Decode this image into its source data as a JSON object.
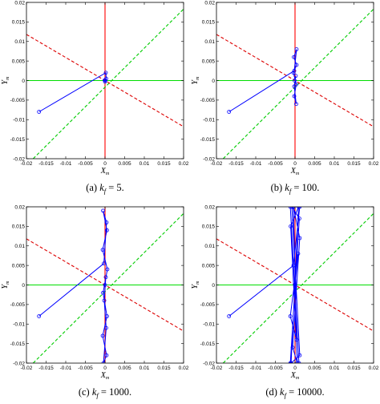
{
  "figure": {
    "captions": [
      {
        "label": "(a) ",
        "var": "k",
        "sub": "f",
        "rest": " = 5."
      },
      {
        "label": "(b) ",
        "var": "k",
        "sub": "f",
        "rest": " = 100."
      },
      {
        "label": "(c) ",
        "var": "k",
        "sub": "f",
        "rest": " = 1000."
      },
      {
        "label": "(d) ",
        "var": "k",
        "sub": "f",
        "rest": " = 10000."
      }
    ]
  },
  "chart_data": [
    {
      "type": "line",
      "panel": "a",
      "xlabel": {
        "main": "X",
        "sub": "m"
      },
      "ylabel": {
        "main": "Y",
        "sub": "m"
      },
      "xlim": [
        -0.02,
        0.02
      ],
      "ylim": [
        -0.02,
        0.02
      ],
      "xticks": [
        "-0.02",
        "-0.015",
        "-0.01",
        "-0.005",
        "0",
        "0.005",
        "0.01",
        "0.015",
        "0.02"
      ],
      "yticks": [
        "0.02",
        "0.015",
        "0.01",
        "0.005",
        "0",
        "-0.005",
        "-0.01",
        "-0.015",
        "-0.02"
      ],
      "reference_lines": [
        {
          "color": "#ff0000",
          "style": "solid",
          "points": [
            [
              0,
              -0.02
            ],
            [
              0,
              0.02
            ]
          ]
        },
        {
          "color": "#00dd00",
          "style": "solid",
          "points": [
            [
              -0.02,
              0
            ],
            [
              0.02,
              0
            ]
          ]
        },
        {
          "color": "#00cc00",
          "style": "dashed",
          "points": [
            [
              -0.0183,
              -0.02
            ],
            [
              0.02,
              0.0183
            ]
          ]
        },
        {
          "color": "#dd0000",
          "style": "dashed",
          "points": [
            [
              -0.02,
              0.0118
            ],
            [
              0.02,
              -0.0118
            ]
          ]
        }
      ],
      "trajectory": {
        "color": "#0000ff",
        "points": [
          [
            -0.0168,
            -0.008
          ],
          [
            0.0002,
            0.002
          ],
          [
            0.0003,
            0.0005
          ],
          [
            0.0,
            -0.0003
          ],
          [
            -0.0001,
            0.0001
          ],
          [
            0.0001,
            0.0
          ]
        ],
        "markers": [
          [
            -0.0168,
            -0.008
          ],
          [
            0.0002,
            0.002
          ],
          [
            0.0003,
            0.0005
          ],
          [
            0.0,
            -0.0003
          ],
          [
            -0.0001,
            0.0001
          ],
          [
            0.0001,
            0.0
          ]
        ]
      }
    },
    {
      "type": "line",
      "panel": "b",
      "xlabel": {
        "main": "X",
        "sub": "m"
      },
      "ylabel": {
        "main": "Y",
        "sub": "m"
      },
      "xlim": [
        -0.02,
        0.02
      ],
      "ylim": [
        -0.02,
        0.02
      ],
      "xticks": [
        "-0.02",
        "-0.015",
        "-0.01",
        "-0.005",
        "0",
        "0.005",
        "0.01",
        "0.015",
        "0.02"
      ],
      "yticks": [
        "0.02",
        "0.015",
        "0.01",
        "0.005",
        "0",
        "-0.005",
        "-0.01",
        "-0.015",
        "-0.02"
      ],
      "reference_lines": [
        {
          "color": "#ff0000",
          "style": "solid",
          "points": [
            [
              0,
              -0.02
            ],
            [
              0,
              0.02
            ]
          ]
        },
        {
          "color": "#00dd00",
          "style": "solid",
          "points": [
            [
              -0.02,
              0
            ],
            [
              0.02,
              0
            ]
          ]
        },
        {
          "color": "#00cc00",
          "style": "dashed",
          "points": [
            [
              -0.0183,
              -0.02
            ],
            [
              0.02,
              0.0183
            ]
          ]
        },
        {
          "color": "#dd0000",
          "style": "dashed",
          "points": [
            [
              -0.02,
              0.0118
            ],
            [
              0.02,
              -0.0118
            ]
          ]
        }
      ],
      "trajectory": {
        "color": "#0000ff",
        "points": [
          [
            -0.0168,
            -0.008
          ],
          [
            -0.0002,
            0.0025
          ],
          [
            0.0004,
            0.008
          ],
          [
            -0.0003,
            0.006
          ],
          [
            0.0004,
            0.004
          ],
          [
            -0.0004,
            0.002
          ],
          [
            0.0003,
            -0.001
          ],
          [
            -0.0002,
            -0.004
          ],
          [
            0.0003,
            -0.006
          ],
          [
            -0.0002,
            -0.0015
          ],
          [
            0.0002,
            0.0012
          ],
          [
            -0.0001,
            0.0
          ]
        ],
        "markers": [
          [
            -0.0168,
            -0.008
          ],
          [
            -0.0002,
            0.0025
          ],
          [
            0.0004,
            0.008
          ],
          [
            -0.0003,
            0.006
          ],
          [
            0.0004,
            0.004
          ],
          [
            -0.0004,
            0.002
          ],
          [
            0.0003,
            -0.001
          ],
          [
            -0.0002,
            -0.004
          ],
          [
            0.0003,
            -0.006
          ],
          [
            -0.0002,
            -0.0015
          ],
          [
            0.0002,
            0.0012
          ],
          [
            -0.0001,
            0.0
          ]
        ]
      }
    },
    {
      "type": "line",
      "panel": "c",
      "xlabel": {
        "main": "X",
        "sub": "m"
      },
      "ylabel": {
        "main": "Y",
        "sub": "m"
      },
      "xlim": [
        -0.02,
        0.02
      ],
      "ylim": [
        -0.02,
        0.02
      ],
      "xticks": [
        "-0.02",
        "-0.015",
        "-0.01",
        "-0.005",
        "0",
        "0.005",
        "0.01",
        "0.015",
        "0.02"
      ],
      "yticks": [
        "0.02",
        "0.015",
        "0.01",
        "0.005",
        "0",
        "-0.005",
        "-0.01",
        "-0.015",
        "-0.02"
      ],
      "reference_lines": [
        {
          "color": "#ff0000",
          "style": "solid",
          "points": [
            [
              0,
              -0.02
            ],
            [
              0,
              0.02
            ]
          ]
        },
        {
          "color": "#00dd00",
          "style": "solid",
          "points": [
            [
              -0.02,
              0
            ],
            [
              0.02,
              0
            ]
          ]
        },
        {
          "color": "#00cc00",
          "style": "dashed",
          "points": [
            [
              -0.0183,
              -0.02
            ],
            [
              0.02,
              0.0183
            ]
          ]
        },
        {
          "color": "#dd0000",
          "style": "dashed",
          "points": [
            [
              -0.02,
              0.0118
            ],
            [
              0.02,
              -0.0118
            ]
          ]
        }
      ],
      "trajectory": {
        "color": "#0000ff",
        "points": [
          [
            -0.0168,
            -0.008
          ],
          [
            -0.0003,
            0.0055
          ],
          [
            0.0004,
            0.016
          ],
          [
            -0.0005,
            0.019
          ],
          [
            0.0005,
            0.014
          ],
          [
            -0.0006,
            0.009
          ],
          [
            0.0006,
            0.004
          ],
          [
            -0.0005,
            -0.002
          ],
          [
            0.0005,
            -0.008
          ],
          [
            -0.0006,
            -0.013
          ],
          [
            0.0004,
            -0.018
          ],
          [
            -0.0004,
            -0.02
          ],
          [
            0.0003,
            -0.011
          ],
          [
            -0.0002,
            -0.004
          ],
          [
            0.0002,
            0.002
          ],
          [
            0.0,
            0.0
          ]
        ],
        "markers": [
          [
            -0.0168,
            -0.008
          ],
          [
            -0.0003,
            0.0055
          ],
          [
            0.0004,
            0.016
          ],
          [
            -0.0005,
            0.019
          ],
          [
            0.0005,
            0.014
          ],
          [
            -0.0006,
            0.009
          ],
          [
            0.0006,
            0.004
          ],
          [
            -0.0005,
            -0.002
          ],
          [
            0.0005,
            -0.008
          ],
          [
            -0.0006,
            -0.013
          ],
          [
            0.0004,
            -0.018
          ],
          [
            -0.0004,
            -0.02
          ],
          [
            0.0003,
            -0.011
          ],
          [
            -0.0002,
            -0.004
          ],
          [
            0.0002,
            0.002
          ],
          [
            0.0,
            0.0
          ]
        ]
      }
    },
    {
      "type": "line",
      "panel": "d",
      "xlabel": {
        "main": "X",
        "sub": "m"
      },
      "ylabel": {
        "main": "Y",
        "sub": "m"
      },
      "xlim": [
        -0.02,
        0.02
      ],
      "ylim": [
        -0.02,
        0.02
      ],
      "xticks": [
        "-0.02",
        "-0.015",
        "-0.01",
        "-0.005",
        "0",
        "0.005",
        "0.01",
        "0.015",
        "0.02"
      ],
      "yticks": [
        "0.02",
        "0.015",
        "0.01",
        "0.005",
        "0",
        "-0.005",
        "-0.01",
        "-0.015",
        "-0.02"
      ],
      "reference_lines": [
        {
          "color": "#ff0000",
          "style": "solid",
          "points": [
            [
              0,
              -0.02
            ],
            [
              0,
              0.02
            ]
          ]
        },
        {
          "color": "#00dd00",
          "style": "solid",
          "points": [
            [
              -0.02,
              0
            ],
            [
              0.02,
              0
            ]
          ]
        },
        {
          "color": "#00cc00",
          "style": "dashed",
          "points": [
            [
              -0.0183,
              -0.02
            ],
            [
              0.02,
              0.0183
            ]
          ]
        },
        {
          "color": "#dd0000",
          "style": "dashed",
          "points": [
            [
              -0.02,
              0.0118
            ],
            [
              0.02,
              -0.0118
            ]
          ]
        }
      ],
      "trajectory": {
        "color": "#0000ff",
        "points": [
          [
            -0.0168,
            -0.008
          ],
          [
            -0.0004,
            0.005
          ],
          [
            0.0012,
            0.02
          ],
          [
            -0.0012,
            0.02
          ],
          [
            0.001,
            -0.02
          ],
          [
            -0.0012,
            -0.02
          ],
          [
            0.0011,
            0.017
          ],
          [
            -0.0008,
            0.02
          ],
          [
            0.0012,
            -0.018
          ],
          [
            -0.001,
            -0.02
          ],
          [
            0.0009,
            0.02
          ],
          [
            -0.0011,
            0.015
          ],
          [
            0.0006,
            -0.02
          ],
          [
            -0.0006,
            -0.016
          ],
          [
            0.0012,
            0.012
          ],
          [
            -0.0004,
            0.02
          ],
          [
            0.0004,
            -0.014
          ],
          [
            -0.0012,
            -0.008
          ],
          [
            0.0008,
            0.008
          ],
          [
            0.0,
            0.0
          ]
        ],
        "markers": [
          [
            -0.0168,
            -0.008
          ],
          [
            -0.0004,
            0.005
          ],
          [
            0.0012,
            0.02
          ],
          [
            -0.0012,
            0.02
          ],
          [
            0.001,
            -0.02
          ],
          [
            -0.0012,
            -0.02
          ],
          [
            0.0011,
            0.017
          ],
          [
            -0.0008,
            0.02
          ],
          [
            0.0012,
            -0.018
          ],
          [
            -0.001,
            -0.02
          ],
          [
            0.0009,
            0.02
          ],
          [
            -0.0011,
            0.015
          ],
          [
            0.0006,
            -0.02
          ],
          [
            -0.0006,
            -0.016
          ],
          [
            0.0012,
            0.012
          ],
          [
            -0.0004,
            0.02
          ],
          [
            0.0004,
            -0.014
          ],
          [
            -0.0012,
            -0.008
          ],
          [
            0.0008,
            0.008
          ],
          [
            0.0,
            0.0
          ]
        ]
      }
    }
  ]
}
